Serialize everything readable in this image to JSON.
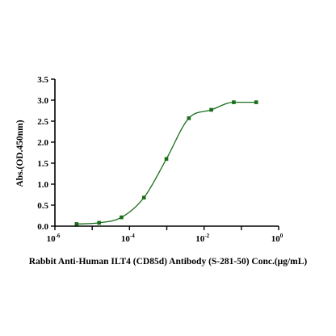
{
  "chart_data": {
    "type": "scatter",
    "title": "",
    "xlabel": "Rabbit Anti-Human ILT4 (CD85d) Antibody (S-281-50)  Conc.(μg/mL)",
    "ylabel": "Abs.(OD.450nm)",
    "x_scale": "log10",
    "xlim": [
      1e-06,
      1
    ],
    "ylim": [
      0,
      3.5
    ],
    "x_ticks": [
      {
        "base": "10",
        "exp": "-6"
      },
      {
        "base": "10",
        "exp": "-4"
      },
      {
        "base": "10",
        "exp": "-2"
      },
      {
        "base": "10",
        "exp": "0"
      }
    ],
    "y_ticks": [
      "0.0",
      "0.5",
      "1.0",
      "1.5",
      "2.0",
      "2.5",
      "3.0",
      "3.5"
    ],
    "grid": false,
    "legend": "none",
    "color": "#1a6e1a",
    "series": [
      {
        "x": [
          3.8e-06,
          1.53e-05,
          6.1e-05,
          0.000244,
          0.000977,
          0.00391,
          0.0156,
          0.0625,
          0.25
        ],
        "y": [
          0.05,
          0.08,
          0.21,
          0.68,
          1.6,
          2.57,
          2.77,
          2.95,
          2.95
        ]
      }
    ],
    "fit_curve": "4-parameter logistic"
  }
}
